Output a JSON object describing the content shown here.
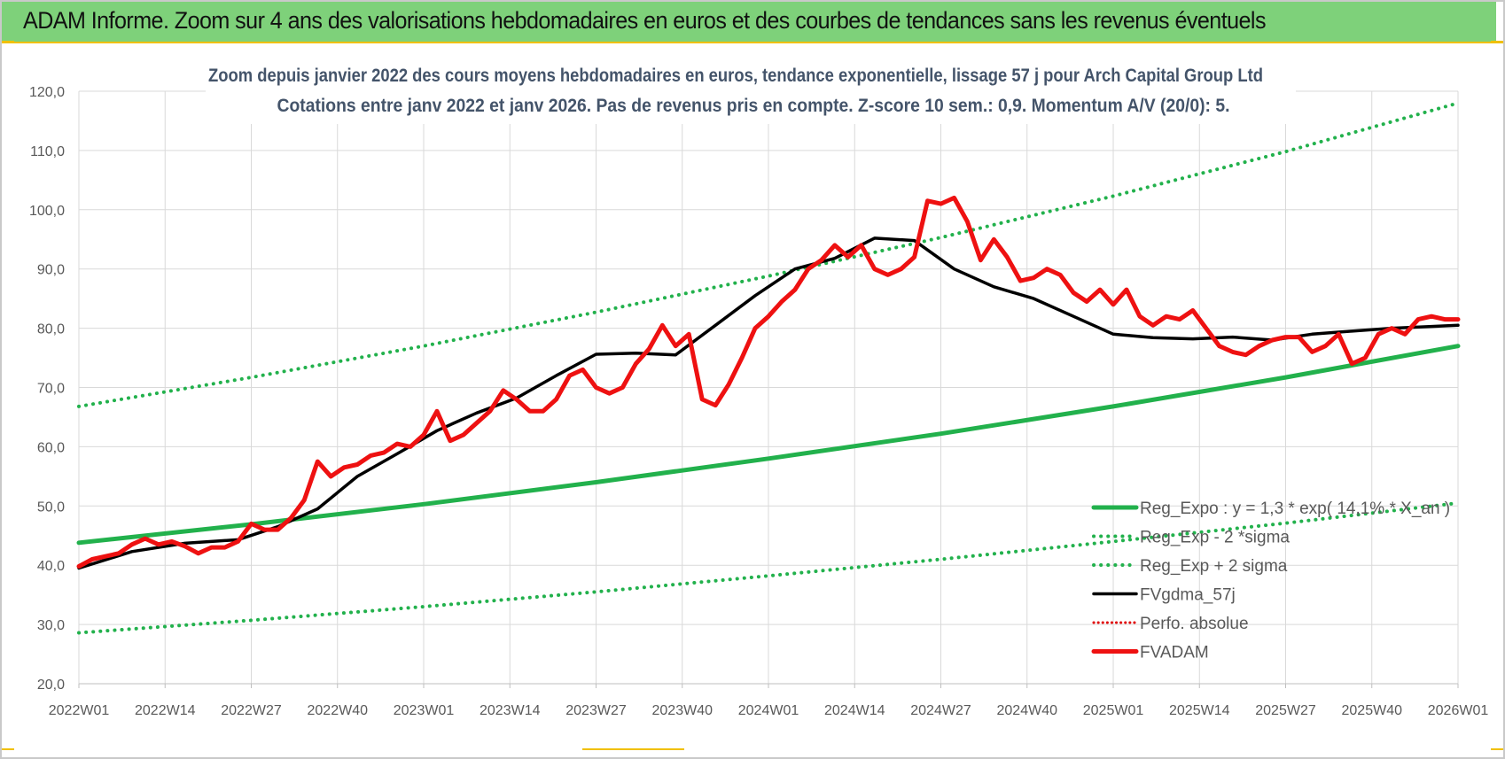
{
  "header": {
    "title": "ADAM Informe. Zoom sur 4 ans des valorisations hebdomadaires en euros et des courbes de tendances sans les revenus éventuels"
  },
  "colors": {
    "banner": "#7ed17a",
    "reg_expo": "#22b14c",
    "sigma": "#22b14c",
    "fvgdma": "#000000",
    "perfo": "#e00000",
    "fvadam": "#ee1111"
  },
  "chart_data": {
    "type": "line",
    "title": "Zoom depuis janvier 2022 des cours moyens hebdomadaires en euros, tendance exponentielle, lissage 57 j pour Arch Capital Group Ltd",
    "subtitle": "Cotations entre janv 2022 et janv 2026. Pas de revenus pris en compte. Z-score 10 sem.: 0,9. Momentum A/V (20/0): 5.",
    "xlabel": "",
    "ylabel": "",
    "ylim": [
      20,
      120
    ],
    "yticks": [
      "120,0",
      "110,0",
      "100,0",
      "90,0",
      "80,0",
      "70,0",
      "60,0",
      "50,0",
      "40,0",
      "30,0",
      "20,0"
    ],
    "xticks": [
      "2022W01",
      "2022W14",
      "2022W27",
      "2022W40",
      "2023W01",
      "2023W14",
      "2023W27",
      "2023W40",
      "2024W01",
      "2024W14",
      "2024W27",
      "2024W40",
      "2025W01",
      "2025W14",
      "2025W27",
      "2025W40",
      "2026W01"
    ],
    "grid": true,
    "legend_position": "bottom-right",
    "series": [
      {
        "name": "Reg_Expo : y = 1,3 * exp( 14,1% * X_an )",
        "style": "solid",
        "x": [
          0,
          26,
          52,
          78,
          104,
          130,
          156,
          182,
          208
        ],
        "values": [
          43.8,
          46.9,
          50.3,
          54.0,
          58.0,
          62.2,
          66.8,
          71.7,
          77.0
        ]
      },
      {
        "name": "Reg_Exp - 2 *sigma",
        "style": "dotted",
        "x": [
          0,
          26,
          52,
          78,
          104,
          130,
          156,
          182,
          208
        ],
        "values": [
          28.6,
          30.7,
          33.0,
          35.5,
          38.2,
          41.0,
          44.0,
          47.1,
          50.5
        ]
      },
      {
        "name": "Reg_Exp + 2 sigma",
        "style": "dotted",
        "x": [
          0,
          26,
          52,
          78,
          104,
          130,
          156,
          182,
          208
        ],
        "values": [
          66.8,
          71.7,
          77.0,
          82.7,
          88.8,
          95.3,
          102.3,
          109.8,
          118.0
        ]
      },
      {
        "name": "FVgdma_57j",
        "style": "solid",
        "x": [
          0,
          8,
          16,
          24,
          30,
          36,
          42,
          48,
          54,
          60,
          66,
          72,
          78,
          84,
          90,
          96,
          102,
          108,
          114,
          120,
          126,
          132,
          138,
          144,
          150,
          156,
          162,
          168,
          174,
          180,
          186,
          192,
          198,
          204,
          208
        ],
        "values": [
          39.5,
          42.3,
          43.7,
          44.3,
          46.5,
          49.5,
          55.0,
          58.8,
          62.7,
          65.7,
          68.2,
          72.0,
          75.6,
          75.8,
          75.5,
          80.5,
          85.5,
          90.0,
          91.8,
          95.2,
          94.8,
          90.0,
          87.0,
          85.0,
          82.0,
          79.0,
          78.4,
          78.2,
          78.5,
          78.0,
          79.0,
          79.5,
          80.0,
          80.3,
          80.5
        ]
      },
      {
        "name": "Perfo. absolue",
        "style": "dotted",
        "x": [],
        "values": []
      },
      {
        "name": "FVADAM",
        "style": "solid",
        "x": [
          0,
          2,
          4,
          6,
          8,
          10,
          12,
          14,
          16,
          18,
          20,
          22,
          24,
          26,
          28,
          30,
          32,
          34,
          36,
          38,
          40,
          42,
          44,
          46,
          48,
          50,
          52,
          54,
          56,
          58,
          60,
          62,
          64,
          66,
          68,
          70,
          72,
          74,
          76,
          78,
          80,
          82,
          84,
          86,
          88,
          90,
          92,
          94,
          96,
          98,
          100,
          102,
          104,
          106,
          108,
          110,
          112,
          114,
          116,
          118,
          120,
          122,
          124,
          126,
          128,
          130,
          132,
          134,
          136,
          138,
          140,
          142,
          144,
          146,
          148,
          150,
          152,
          154,
          156,
          158,
          160,
          162,
          164,
          166,
          168,
          170,
          172,
          174,
          176,
          178,
          180,
          182,
          184,
          186,
          188,
          190,
          192,
          194,
          196,
          198,
          200,
          202,
          204,
          206,
          208
        ],
        "values": [
          39.8,
          41.0,
          41.5,
          42.0,
          43.5,
          44.5,
          43.5,
          44.0,
          43.2,
          42.0,
          43.0,
          43.0,
          44.0,
          47.0,
          46.0,
          46.0,
          48.0,
          51.0,
          57.5,
          55.0,
          56.5,
          57.0,
          58.5,
          59.0,
          60.5,
          60.0,
          62.0,
          66.0,
          61.0,
          62.0,
          64.0,
          66.0,
          69.5,
          68.0,
          66.0,
          66.0,
          68.0,
          72.0,
          73.0,
          70.0,
          69.0,
          70.0,
          74.0,
          76.5,
          80.5,
          77.0,
          79.0,
          68.0,
          67.0,
          70.5,
          75.0,
          80.0,
          82.0,
          84.5,
          86.5,
          90.0,
          91.5,
          94.0,
          92.0,
          94.0,
          90.0,
          89.0,
          90.0,
          92.0,
          101.5,
          101.0,
          102.0,
          98.0,
          91.5,
          95.0,
          92.0,
          88.0,
          88.5,
          90.0,
          89.0,
          86.0,
          84.5,
          86.5,
          84.0,
          86.5,
          82.0,
          80.5,
          82.0,
          81.5,
          83.0,
          80.0,
          77.0,
          76.0,
          75.5,
          77.0,
          78.0,
          78.5,
          78.5,
          76.0,
          77.0,
          79.0,
          74.0,
          75.0,
          79.0,
          80.0,
          79.0,
          81.5,
          82.0,
          81.5,
          81.5
        ]
      }
    ]
  }
}
